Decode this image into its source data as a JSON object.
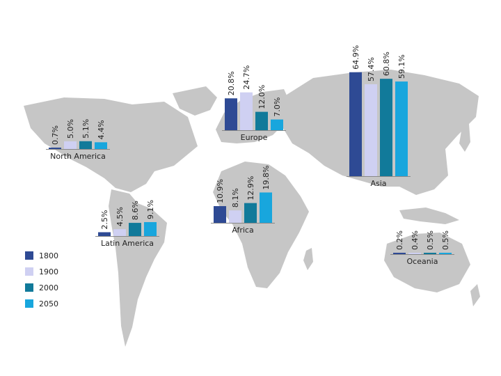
{
  "chart_data": [
    {
      "type": "bar",
      "region": "North America",
      "categories": [
        "1800",
        "1900",
        "2000",
        "2050"
      ],
      "values": [
        0.7,
        5.0,
        5.1,
        4.4
      ],
      "value_labels": [
        "0.7%",
        "5.0%",
        "5.1%",
        "4.4%"
      ]
    },
    {
      "type": "bar",
      "region": "Latin America",
      "categories": [
        "1800",
        "1900",
        "2000",
        "2050"
      ],
      "values": [
        2.5,
        4.5,
        8.6,
        9.1
      ],
      "value_labels": [
        "2.5%",
        "4.5%",
        "8.6%",
        "9.1%"
      ]
    },
    {
      "type": "bar",
      "region": "Europe",
      "categories": [
        "1800",
        "1900",
        "2000",
        "2050"
      ],
      "values": [
        20.8,
        24.7,
        12.0,
        7.0
      ],
      "value_labels": [
        "20.8%",
        "24.7%",
        "12.0%",
        "7.0%"
      ]
    },
    {
      "type": "bar",
      "region": "Africa",
      "categories": [
        "1800",
        "1900",
        "2000",
        "2050"
      ],
      "values": [
        10.9,
        8.1,
        12.9,
        19.8
      ],
      "value_labels": [
        "10.9%",
        "8.1%",
        "12.9%",
        "19.8%"
      ]
    },
    {
      "type": "bar",
      "region": "Asia",
      "categories": [
        "1800",
        "1900",
        "2000",
        "2050"
      ],
      "values": [
        64.9,
        57.4,
        60.8,
        59.1
      ],
      "value_labels": [
        "64.9%",
        "57.4%",
        "60.8%",
        "59.1%"
      ]
    },
    {
      "type": "bar",
      "region": "Oceania",
      "categories": [
        "1800",
        "1900",
        "2000",
        "2050"
      ],
      "values": [
        0.2,
        0.4,
        0.5,
        0.5
      ],
      "value_labels": [
        "0.2%",
        "0.4%",
        "0.5%",
        "0.5%"
      ]
    }
  ],
  "legend": {
    "items": [
      {
        "label": "1800",
        "color": "#2e4a94"
      },
      {
        "label": "1900",
        "color": "#cfd0f2"
      },
      {
        "label": "2000",
        "color": "#117a9a"
      },
      {
        "label": "2050",
        "color": "#18a6dd"
      }
    ],
    "placement": "bottom-left"
  },
  "colors": {
    "map": "#c6c6c6",
    "baseline": "#888888"
  }
}
